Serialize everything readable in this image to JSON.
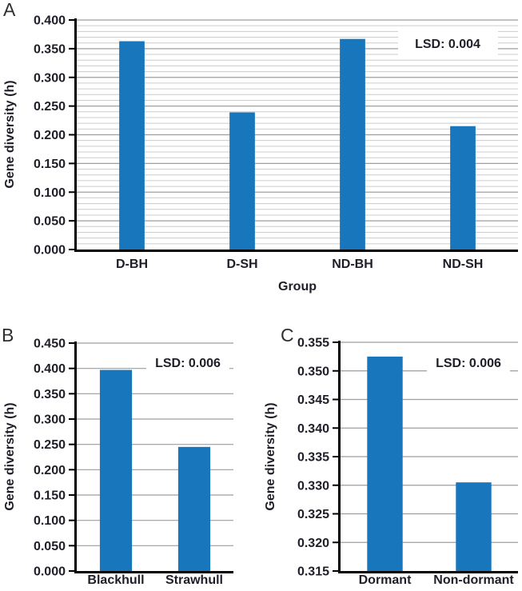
{
  "figure": {
    "bar_color": "#1776BC",
    "grid_color_major": "#9e9e9e",
    "grid_color_minor": "#cccccc",
    "axis_color": "#000000",
    "text_color": "#1e1e28",
    "panel_letter_color": "#2f2f2f",
    "annotation_bg": "#ffffff"
  },
  "chart_data": [
    {
      "type": "bar",
      "panel_label": "A",
      "title": "",
      "xlabel": "Group",
      "ylabel": "Gene diversity (h)",
      "categories": [
        "D-BH",
        "D-SH",
        "ND-BH",
        "ND-SH"
      ],
      "values": [
        0.363,
        0.239,
        0.367,
        0.215
      ],
      "ylim": [
        0.0,
        0.4
      ],
      "ytick_step": 0.05,
      "ytick_labels": [
        "0.400",
        "0.350",
        "0.300",
        "0.250",
        "0.200",
        "0.150",
        "0.100",
        "0.050",
        "0.000"
      ],
      "minor_grid_step": 0.01,
      "grid": true,
      "legend": "none",
      "annotation": "LSD: 0.004"
    },
    {
      "type": "bar",
      "panel_label": "B",
      "title": "",
      "xlabel": "",
      "ylabel": "Gene diversity (h)",
      "categories": [
        "Blackhull",
        "Strawhull"
      ],
      "values": [
        0.397,
        0.245
      ],
      "ylim": [
        0.0,
        0.45
      ],
      "ytick_step": 0.05,
      "ytick_labels": [
        "0.450",
        "0.400",
        "0.350",
        "0.300",
        "0.250",
        "0.200",
        "0.150",
        "0.100",
        "0.050",
        "0.000"
      ],
      "minor_grid_step": null,
      "grid": true,
      "legend": "none",
      "annotation": "LSD: 0.006"
    },
    {
      "type": "bar",
      "panel_label": "C",
      "title": "",
      "xlabel": "",
      "ylabel": "Gene diversity (h)",
      "categories": [
        "Dormant",
        "Non-dormant"
      ],
      "values": [
        0.3525,
        0.3305
      ],
      "ylim": [
        0.315,
        0.355
      ],
      "ytick_step": 0.005,
      "ytick_labels": [
        "0.355",
        "0.350",
        "0.345",
        "0.340",
        "0.335",
        "0.330",
        "0.325",
        "0.320",
        "0.315"
      ],
      "minor_grid_step": null,
      "grid": true,
      "legend": "none",
      "annotation": "LSD: 0.006"
    }
  ]
}
